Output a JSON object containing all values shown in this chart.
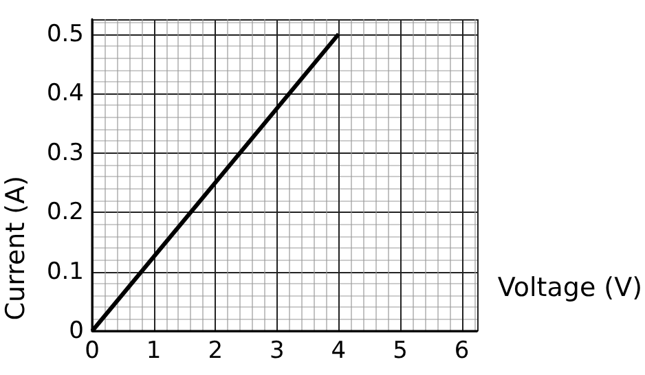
{
  "chart_data": {
    "type": "line",
    "xlabel": "Voltage (V)",
    "ylabel": "Current (A)",
    "x": [
      0,
      4
    ],
    "series": [
      {
        "color": "#000000",
        "values": [
          0,
          0.5
        ]
      }
    ],
    "xlim": [
      0,
      6.25
    ],
    "ylim": [
      0,
      0.525
    ],
    "xticks": [
      0,
      1,
      2,
      3,
      4,
      5,
      6
    ],
    "yticks": [
      0,
      0.1,
      0.2,
      0.3,
      0.4,
      0.5
    ],
    "grid": true,
    "marker": "none",
    "line_style": "solid"
  }
}
